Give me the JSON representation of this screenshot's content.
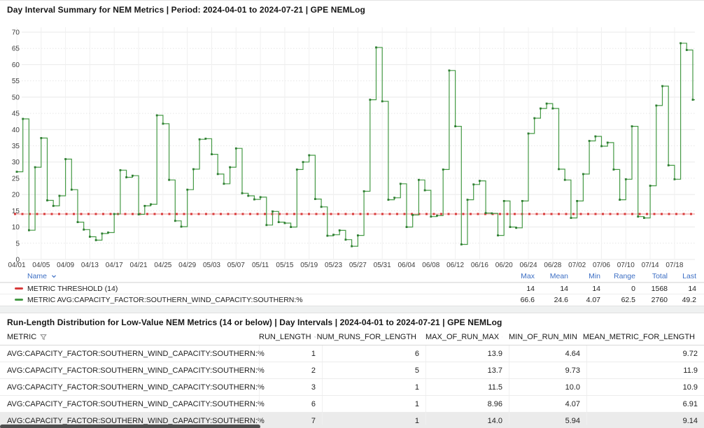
{
  "chart_panel": {
    "title": "Day Interval Summary for NEM Metrics | Period: 2024-04-01 to 2024-07-21 | GPE NEMLog",
    "legend": {
      "name_header": "Name",
      "columns": [
        "Max",
        "Mean",
        "Min",
        "Range",
        "Total",
        "Last"
      ],
      "rows": [
        {
          "name": "METRIC THRESHOLD (14)",
          "color": "#d83a3a",
          "values": [
            "14",
            "14",
            "14",
            "0",
            "1568",
            "14"
          ]
        },
        {
          "name": "METRIC AVG:CAPACITY_FACTOR:SOUTHERN_WIND_CAPACITY:SOUTHERN:%",
          "color": "#459a45",
          "values": [
            "66.6",
            "24.6",
            "4.07",
            "62.5",
            "2760",
            "49.2"
          ]
        }
      ]
    }
  },
  "chart_data": {
    "type": "line",
    "subtype": "step-after",
    "title": "Day Interval Summary for NEM Metrics | Period: 2024-04-01 to 2024-07-21 | GPE NEMLog",
    "xlabel": "",
    "ylabel": "",
    "x_start": "2024-04-01",
    "x_end": "2024-07-21",
    "x_interval": "day",
    "ylim": [
      0,
      70
    ],
    "yticks": [
      0,
      5,
      10,
      15,
      20,
      25,
      30,
      35,
      40,
      45,
      50,
      55,
      60,
      65,
      70
    ],
    "xticks": [
      "04/01",
      "04/05",
      "04/09",
      "04/13",
      "04/17",
      "04/21",
      "04/25",
      "04/29",
      "05/03",
      "05/07",
      "05/11",
      "05/15",
      "05/19",
      "05/23",
      "05/27",
      "05/31",
      "06/04",
      "06/08",
      "06/12",
      "06/16",
      "06/20",
      "06/24",
      "06/28",
      "07/02",
      "07/06",
      "07/10",
      "07/14",
      "07/18"
    ],
    "grid": true,
    "legend_position": "bottom-table",
    "series": [
      {
        "name": "METRIC THRESHOLD (14)",
        "type": "threshold",
        "value": 14,
        "color": "#d83a3a",
        "style": "dashed"
      },
      {
        "name": "METRIC AVG:CAPACITY_FACTOR:SOUTHERN_WIND_CAPACITY:SOUTHERN:%",
        "color": "#459a45",
        "marker": "square",
        "values": [
          27,
          43.3,
          9,
          28.4,
          37.4,
          18.2,
          16.5,
          19.6,
          30.9,
          21.5,
          11.5,
          9.2,
          7,
          5.94,
          8,
          8.3,
          14,
          27.5,
          25.3,
          25.8,
          13.9,
          16.5,
          17,
          44.4,
          41.8,
          24.5,
          11.9,
          10.1,
          21.5,
          27.8,
          37,
          37.2,
          32.4,
          26.3,
          23.3,
          28.4,
          34.2,
          20.4,
          19.6,
          18.5,
          19.2,
          10.6,
          14.8,
          11.5,
          11.2,
          10,
          27.7,
          30,
          32.1,
          18.6,
          16.2,
          7.3,
          7.6,
          8.96,
          6.1,
          4.07,
          7.4,
          21,
          49.2,
          65.3,
          48.7,
          18.4,
          19,
          23.3,
          10,
          13.7,
          24.5,
          21.3,
          13.2,
          13.5,
          27.7,
          58.2,
          41,
          4.64,
          18.4,
          23.1,
          24.2,
          14.3,
          14.2,
          7.4,
          18,
          10,
          9.73,
          18,
          38.8,
          43.5,
          46.5,
          48,
          46.5,
          27.8,
          24.5,
          12.8,
          18,
          26.3,
          36.5,
          37.9,
          34.9,
          36,
          27.7,
          18.4,
          24.7,
          41,
          13.2,
          12.8,
          22.7,
          47.4,
          53.4,
          29,
          24.7,
          66.6,
          64.5,
          49.2
        ]
      }
    ]
  },
  "table_panel": {
    "title": "Run-Length Distribution for Low-Value NEM Metrics (14 or below) | Day Intervals | 2024-04-01 to 2024-07-21 | GPE NEMLog",
    "columns": [
      "METRIC",
      "RUN_LENGTH",
      "NUM_RUNS_FOR_LENGTH",
      "MAX_OF_RUN_MAX",
      "MIN_OF_RUN_MIN",
      "MEAN_METRIC_FOR_LENGTH"
    ],
    "rows": [
      [
        "AVG:CAPACITY_FACTOR:SOUTHERN_WIND_CAPACITY:SOUTHERN:%",
        "1",
        "6",
        "13.9",
        "4.64",
        "9.72"
      ],
      [
        "AVG:CAPACITY_FACTOR:SOUTHERN_WIND_CAPACITY:SOUTHERN:%",
        "2",
        "5",
        "13.7",
        "9.73",
        "11.9"
      ],
      [
        "AVG:CAPACITY_FACTOR:SOUTHERN_WIND_CAPACITY:SOUTHERN:%",
        "3",
        "1",
        "11.5",
        "10.0",
        "10.9"
      ],
      [
        "AVG:CAPACITY_FACTOR:SOUTHERN_WIND_CAPACITY:SOUTHERN:%",
        "6",
        "1",
        "8.96",
        "4.07",
        "6.91"
      ],
      [
        "AVG:CAPACITY_FACTOR:SOUTHERN_WIND_CAPACITY:SOUTHERN:%",
        "7",
        "1",
        "14.0",
        "5.94",
        "9.14"
      ]
    ]
  },
  "colors": {
    "threshold_red": "#d83a3a",
    "series_green": "#459a45",
    "marker_green": "#2f7d32",
    "legend_header_blue": "#3d6fc4",
    "grid_line": "#e9e9e9"
  }
}
